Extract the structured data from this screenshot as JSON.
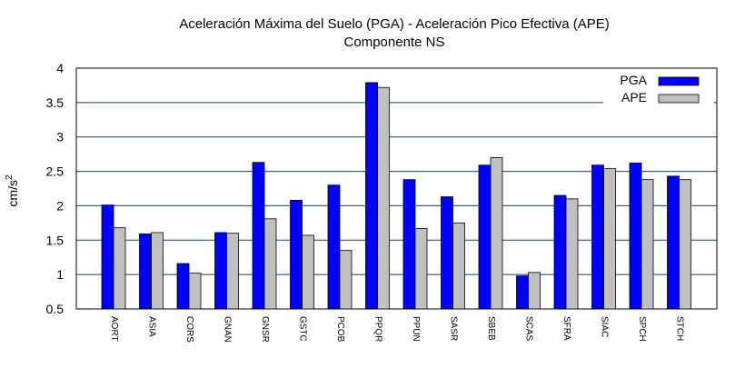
{
  "chart_data": {
    "type": "bar",
    "title": "Aceleración Máxima del Suelo (PGA) -  Aceleración Pico Efectiva (APE)",
    "subtitle": "Componente NS",
    "xlabel": "",
    "ylabel": "cm/s",
    "ylabel_exponent": "2",
    "ylim": [
      0.5,
      4
    ],
    "yticks": [
      "0.5",
      "1",
      "1.5",
      "2",
      "2.5",
      "3",
      "3.5",
      "4"
    ],
    "grid": "horizontal",
    "legend_position": "top-right",
    "categories": [
      "AORT",
      "ASIA",
      "CORS",
      "GNAN",
      "GNSR",
      "GSTC",
      "PCOB",
      "PPQR",
      "PPUN",
      "SASR",
      "SBEB",
      "SCAS",
      "SFRA",
      "SIAC",
      "SPCH",
      "STCH"
    ],
    "series": [
      {
        "name": "PGA",
        "color": "#0000ff",
        "values": [
          2.01,
          1.59,
          1.16,
          1.61,
          2.63,
          2.08,
          2.3,
          3.79,
          2.38,
          2.13,
          2.59,
          0.98,
          2.15,
          2.59,
          2.62,
          2.43
        ]
      },
      {
        "name": "APE",
        "color": "#c0c0c0",
        "values": [
          1.68,
          1.61,
          1.02,
          1.6,
          1.81,
          1.57,
          1.35,
          3.72,
          1.67,
          1.75,
          2.7,
          1.03,
          2.1,
          2.54,
          2.38,
          2.38
        ]
      }
    ]
  }
}
